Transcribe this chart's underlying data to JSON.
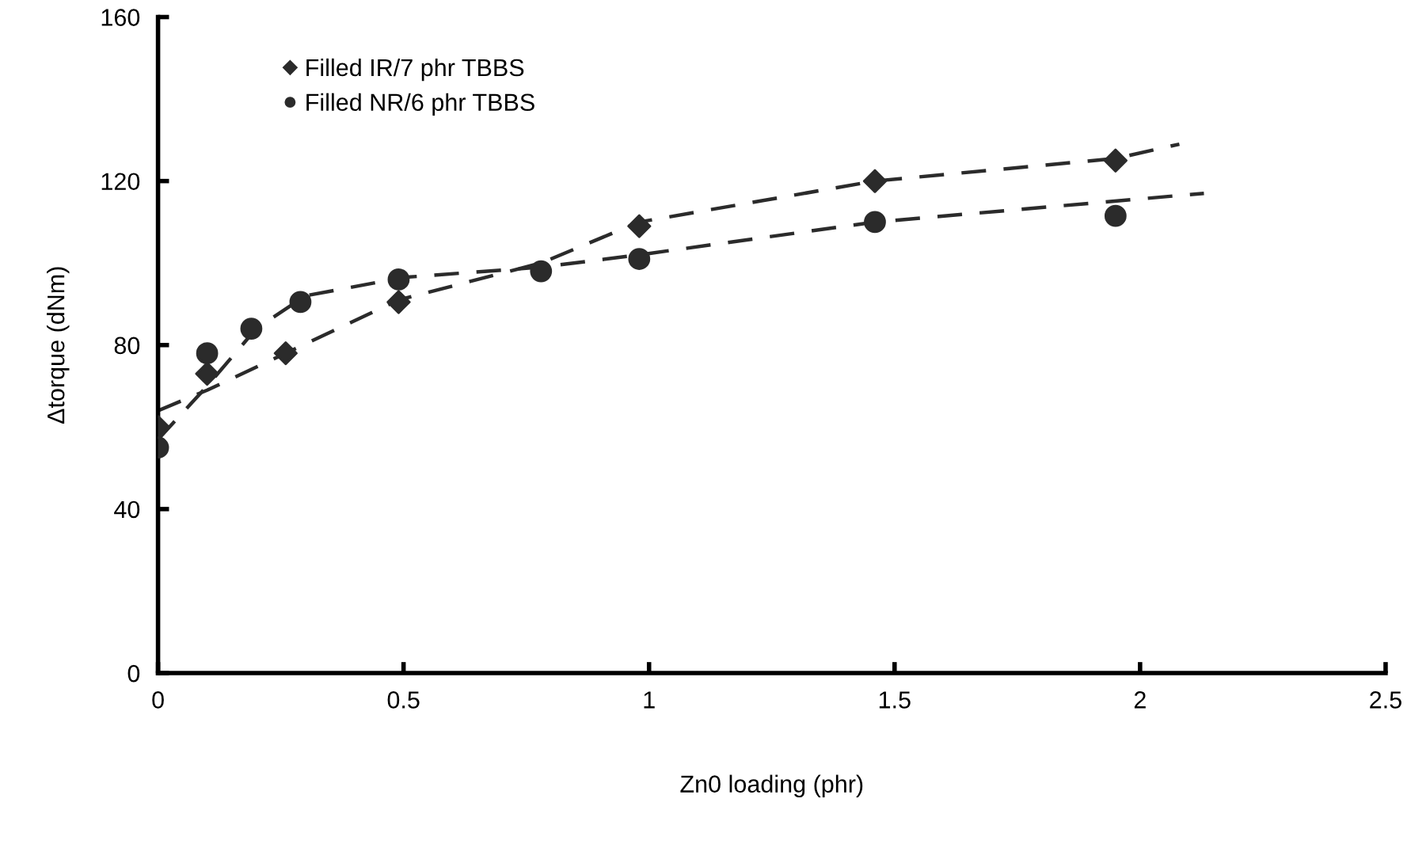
{
  "chart_data": {
    "type": "scatter",
    "xlabel": "Zn0 loading (phr)",
    "ylabel": "Δtorque (dNm)",
    "xlim": [
      0,
      2.5
    ],
    "xticks": [
      0,
      0.5,
      1,
      1.5,
      2,
      2.5
    ],
    "ylim": [
      0,
      160
    ],
    "yticks": [
      0,
      40,
      80,
      120,
      160
    ],
    "grid": false,
    "legend": "top left",
    "series": [
      {
        "name": "Filled IR/7 phr TBBS",
        "color": "#2b2b2b",
        "marker": "diamond",
        "x": [
          0,
          0.1,
          0.26,
          0.49,
          0.98,
          1.46,
          1.95
        ],
        "values": [
          60,
          73,
          78,
          90.5,
          109,
          120,
          125
        ]
      },
      {
        "name": "Filled NR/6 phr TBBS",
        "color": "#2b2b2b",
        "marker": "circle",
        "x": [
          0,
          0.1,
          0.19,
          0.29,
          0.49,
          0.78,
          0.98,
          1.46,
          1.95
        ],
        "values": [
          55,
          78,
          84,
          90.5,
          96,
          98,
          101,
          110,
          111.5
        ]
      },
      {
        "type": "line",
        "color": "#2b2b2b",
        "line_style": "dashed",
        "marker": "none",
        "x": [
          0,
          0.1,
          0.26,
          0.49,
          0.78,
          0.98,
          1.46,
          1.95,
          2.08
        ],
        "values": [
          64,
          69,
          78,
          91,
          100,
          110,
          120,
          125.5,
          129
        ]
      },
      {
        "type": "line",
        "color": "#2b2b2b",
        "line_style": "dashed",
        "marker": "none",
        "x": [
          0,
          0.1,
          0.2,
          0.3,
          0.5,
          0.78,
          0.98,
          1.46,
          2.13
        ],
        "values": [
          57,
          70,
          84,
          92,
          96.5,
          99,
          102,
          110,
          117
        ]
      }
    ]
  }
}
